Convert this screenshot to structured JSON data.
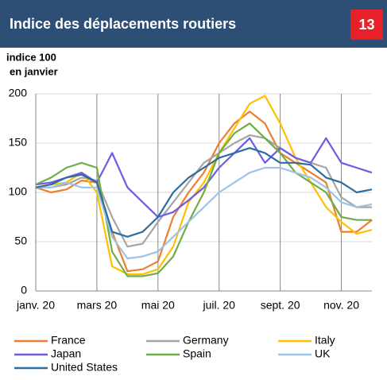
{
  "chart_data": {
    "type": "line",
    "title": "Indice des déplacements routiers",
    "page_number": "13",
    "y_label_lines": [
      "indice 100",
      "en janvier"
    ],
    "categories": [
      "janv. 20",
      null,
      null,
      null,
      "mars 20",
      null,
      null,
      null,
      "mai 20",
      null,
      null,
      null,
      "juil. 20",
      null,
      null,
      null,
      "sept. 20",
      null,
      null,
      null,
      "nov. 20",
      null,
      null
    ],
    "ylim": [
      0,
      200
    ],
    "yticks": [
      0,
      50,
      100,
      150,
      200
    ],
    "grid": true,
    "series": [
      {
        "name": "France",
        "color": "#ed7d31",
        "values": [
          105,
          100,
          103,
          112,
          110,
          60,
          20,
          22,
          30,
          75,
          100,
          120,
          150,
          170,
          182,
          170,
          140,
          130,
          120,
          110,
          60,
          60,
          72
        ]
      },
      {
        "name": "Germany",
        "color": "#a5a5a5",
        "values": [
          105,
          105,
          108,
          115,
          112,
          75,
          45,
          48,
          70,
          90,
          110,
          130,
          140,
          150,
          158,
          155,
          145,
          135,
          130,
          125,
          95,
          85,
          85
        ]
      },
      {
        "name": "Italy",
        "color": "#ffc000",
        "values": [
          105,
          108,
          110,
          120,
          100,
          25,
          17,
          17,
          22,
          45,
          90,
          110,
          140,
          165,
          190,
          198,
          170,
          135,
          110,
          85,
          70,
          58,
          62
        ]
      },
      {
        "name": "Japan",
        "color": "#6b5ce7",
        "values": [
          108,
          110,
          115,
          120,
          110,
          140,
          105,
          90,
          75,
          80,
          92,
          105,
          125,
          140,
          155,
          130,
          145,
          135,
          130,
          155,
          130,
          125,
          120
        ]
      },
      {
        "name": "Spain",
        "color": "#70ad47",
        "values": [
          108,
          115,
          125,
          130,
          125,
          40,
          15,
          15,
          18,
          35,
          70,
          100,
          140,
          160,
          170,
          155,
          140,
          120,
          110,
          100,
          75,
          72,
          72
        ]
      },
      {
        "name": "UK",
        "color": "#9dc3e6",
        "values": [
          105,
          105,
          110,
          105,
          105,
          55,
          33,
          35,
          40,
          55,
          70,
          85,
          100,
          110,
          120,
          125,
          125,
          120,
          115,
          105,
          90,
          85,
          88
        ]
      },
      {
        "name": "United States",
        "color": "#2e6e9e",
        "values": [
          105,
          108,
          115,
          118,
          110,
          60,
          55,
          60,
          75,
          100,
          115,
          125,
          135,
          140,
          145,
          140,
          130,
          130,
          128,
          115,
          110,
          100,
          103
        ]
      }
    ]
  }
}
